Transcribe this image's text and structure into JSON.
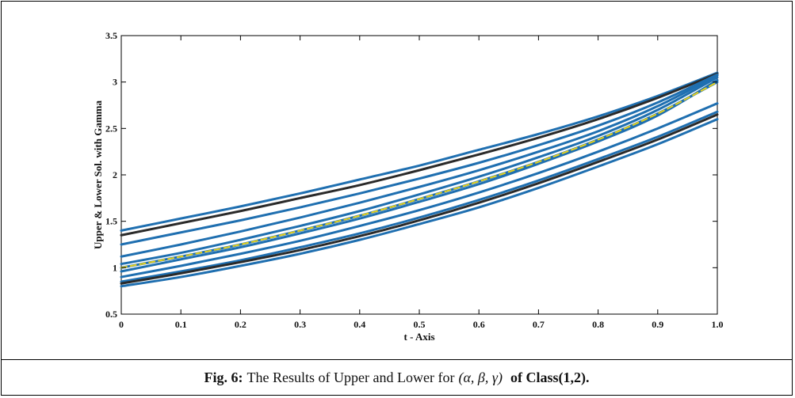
{
  "caption": {
    "label": "Fig. 6:",
    "text": "The Results of Upper and Lower for",
    "math": "(α, β, γ)",
    "suffix": "of Class(1,2)."
  },
  "chart_data": {
    "type": "line",
    "title": "",
    "xlabel": "t - Axis",
    "ylabel": "Upper & Lower Sol. with Gamma",
    "xlim": [
      0,
      1
    ],
    "ylim": [
      0.5,
      3.5
    ],
    "xticks": [
      0,
      0.1,
      0.2,
      0.3,
      0.4,
      0.5,
      0.6,
      0.7,
      0.8,
      0.9,
      1.0
    ],
    "xtick_labels": [
      "0",
      "0.1",
      "0.2",
      "0.3",
      "0.4",
      "0.5",
      "0.6",
      "0.7",
      "0.8",
      "0.9",
      "1.0"
    ],
    "yticks": [
      0.5,
      1,
      1.5,
      2,
      2.5,
      3,
      3.5
    ],
    "ytick_labels": [
      "0.5",
      "1",
      "1.5",
      "2",
      "2.5",
      "3",
      "3.5"
    ],
    "grid": false,
    "x": [
      0,
      0.1,
      0.2,
      0.3,
      0.4,
      0.5,
      0.6,
      0.7,
      0.8,
      0.9,
      1.0
    ],
    "series": [
      {
        "color": "#1f6fb0",
        "style": "solid",
        "values": [
          1.4,
          1.53,
          1.66,
          1.8,
          1.95,
          2.1,
          2.27,
          2.44,
          2.63,
          2.85,
          3.1
        ]
      },
      {
        "color": "#2a2a2a",
        "style": "solid",
        "values": [
          1.35,
          1.48,
          1.61,
          1.75,
          1.89,
          2.05,
          2.22,
          2.4,
          2.6,
          2.83,
          3.09
        ]
      },
      {
        "color": "#1f6fb0",
        "style": "solid",
        "values": [
          1.25,
          1.38,
          1.51,
          1.65,
          1.8,
          1.96,
          2.13,
          2.32,
          2.53,
          2.78,
          3.08
        ]
      },
      {
        "color": "#1f6fb0",
        "style": "solid",
        "values": [
          1.12,
          1.25,
          1.39,
          1.54,
          1.7,
          1.87,
          2.05,
          2.25,
          2.47,
          2.74,
          3.07
        ]
      },
      {
        "color": "#1f6fb0",
        "style": "solid",
        "values": [
          1.04,
          1.16,
          1.3,
          1.45,
          1.61,
          1.79,
          1.98,
          2.19,
          2.42,
          2.7,
          3.05
        ]
      },
      {
        "color": "#1f6fb0",
        "style": "solid",
        "values": [
          0.96,
          1.09,
          1.22,
          1.37,
          1.53,
          1.71,
          1.9,
          2.12,
          2.36,
          2.64,
          3.02
        ]
      },
      {
        "color": "#1f6fb0",
        "style": "solid",
        "values": [
          1.0,
          1.12,
          1.25,
          1.4,
          1.56,
          1.74,
          1.93,
          2.14,
          2.38,
          2.66,
          3.0
        ]
      },
      {
        "color": "#e8d21a",
        "style": "dashed",
        "values": [
          1.0,
          1.12,
          1.25,
          1.4,
          1.56,
          1.74,
          1.93,
          2.14,
          2.38,
          2.66,
          3.0
        ]
      },
      {
        "color": "#1f6fb0",
        "style": "solid",
        "values": [
          0.9,
          1.02,
          1.15,
          1.29,
          1.45,
          1.62,
          1.81,
          2.02,
          2.25,
          2.5,
          2.77
        ]
      },
      {
        "color": "#1f6fb0",
        "style": "solid",
        "values": [
          0.85,
          0.96,
          1.08,
          1.22,
          1.37,
          1.54,
          1.73,
          1.94,
          2.17,
          2.41,
          2.68
        ]
      },
      {
        "color": "#2a2a2a",
        "style": "solid",
        "values": [
          0.83,
          0.94,
          1.06,
          1.19,
          1.34,
          1.51,
          1.7,
          1.91,
          2.14,
          2.38,
          2.65
        ]
      },
      {
        "color": "#1f6fb0",
        "style": "solid",
        "values": [
          0.8,
          0.9,
          1.02,
          1.15,
          1.3,
          1.47,
          1.65,
          1.86,
          2.09,
          2.33,
          2.6
        ]
      }
    ]
  }
}
